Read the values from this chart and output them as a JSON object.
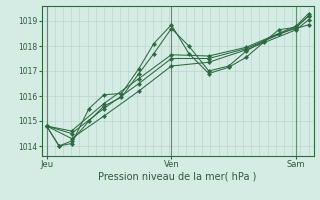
{
  "title": "",
  "xlabel": "Pression niveau de la mer( hPa )",
  "bg_color": "#d4ece4",
  "grid_color": "#b8d8cc",
  "line_color": "#2d6a3f",
  "xtick_labels": [
    "Jeu",
    "Ven",
    "Sam"
  ],
  "xtick_positions": [
    0.0,
    0.5,
    1.0
  ],
  "ytick_values": [
    1014,
    1015,
    1016,
    1017,
    1018,
    1019
  ],
  "ylim": [
    1013.6,
    1019.6
  ],
  "xlim": [
    -0.02,
    1.07
  ],
  "lines": [
    {
      "x": [
        0.0,
        0.05,
        0.1,
        0.17,
        0.23,
        0.3,
        0.37,
        0.43,
        0.5,
        0.57,
        0.65,
        0.73,
        0.8,
        0.87,
        0.93,
        1.0,
        1.05
      ],
      "y": [
        1014.8,
        1014.0,
        1014.1,
        1015.5,
        1016.05,
        1016.1,
        1017.1,
        1018.1,
        1018.85,
        1017.7,
        1016.9,
        1017.15,
        1017.55,
        1018.15,
        1018.65,
        1018.75,
        1019.2
      ]
    },
    {
      "x": [
        0.0,
        0.05,
        0.1,
        0.17,
        0.23,
        0.3,
        0.37,
        0.43,
        0.5,
        0.57,
        0.65,
        0.73,
        0.8,
        0.87,
        0.93,
        1.0,
        1.05
      ],
      "y": [
        1014.8,
        1014.0,
        1014.2,
        1015.0,
        1015.6,
        1015.95,
        1016.9,
        1017.7,
        1018.7,
        1018.0,
        1017.0,
        1017.2,
        1017.8,
        1018.2,
        1018.5,
        1018.7,
        1018.85
      ]
    },
    {
      "x": [
        0.0,
        0.1,
        0.23,
        0.37,
        0.5,
        0.65,
        0.8,
        1.0,
        1.05
      ],
      "y": [
        1014.8,
        1014.3,
        1015.2,
        1016.2,
        1017.2,
        1017.35,
        1017.85,
        1018.65,
        1019.05
      ]
    },
    {
      "x": [
        0.0,
        0.1,
        0.23,
        0.37,
        0.5,
        0.65,
        0.8,
        1.0,
        1.05
      ],
      "y": [
        1014.8,
        1014.5,
        1015.5,
        1016.5,
        1017.5,
        1017.5,
        1017.9,
        1018.75,
        1019.2
      ]
    },
    {
      "x": [
        0.0,
        0.1,
        0.23,
        0.37,
        0.5,
        0.65,
        0.8,
        1.0,
        1.05
      ],
      "y": [
        1014.8,
        1014.6,
        1015.7,
        1016.7,
        1017.65,
        1017.6,
        1017.95,
        1018.8,
        1019.3
      ]
    }
  ],
  "ytick_fontsize": 5.5,
  "xtick_fontsize": 6.0,
  "xlabel_fontsize": 7.0,
  "text_color": "#2d5a3a"
}
